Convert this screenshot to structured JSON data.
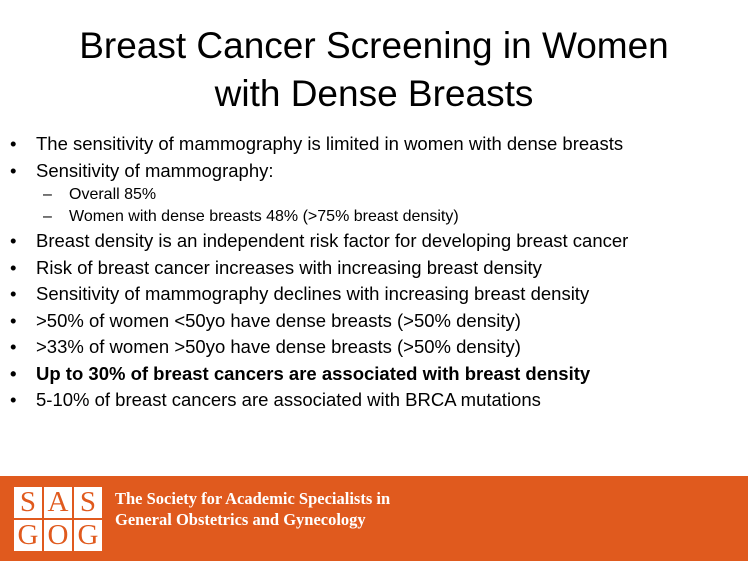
{
  "title": {
    "line1": "Breast Cancer Screening in Women",
    "line2": "with Dense Breasts"
  },
  "bullet_mark": "•",
  "sub_mark": "–",
  "bullets": [
    {
      "text": "The sensitivity of mammography is limited in women with dense breasts"
    },
    {
      "text": "Sensitivity of mammography:"
    },
    {
      "text": "Overall 85%"
    },
    {
      "text": "Women with dense breasts 48%  (>75% breast density)"
    },
    {
      "text": "Breast density is an independent risk factor for developing breast cancer"
    },
    {
      "text": "Risk of breast cancer increases with increasing breast density"
    },
    {
      "text": "Sensitivity of mammography declines with increasing breast density"
    },
    {
      "text": ">50% of women <50yo have dense breasts (>50% density)"
    },
    {
      "text": ">33% of women >50yo have dense breasts (>50% density)"
    },
    {
      "text": "Up to 30% of breast cancers are associated with breast density"
    },
    {
      "text": "5-10% of breast cancers are associated with BRCA mutations"
    }
  ],
  "footer": {
    "logo_letters": [
      "S",
      "A",
      "S",
      "G",
      "O",
      "G"
    ],
    "org_line1": "The Society for Academic Specialists in",
    "org_line2": "General Obstetrics and Gynecology",
    "color": "#E05A1E"
  }
}
